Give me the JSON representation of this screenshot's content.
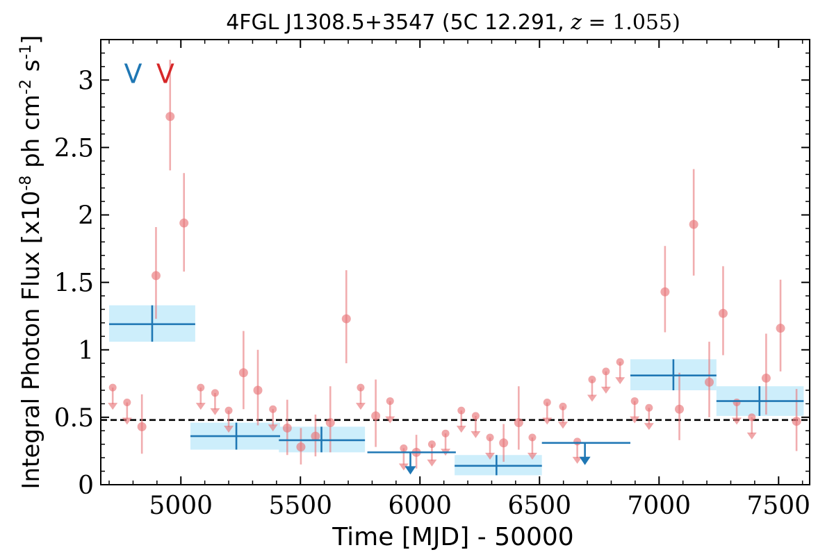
{
  "chart_data": {
    "type": "scatter",
    "title": "4FGL J1308.5+3547 (5C 12.291, z = 1.055)",
    "xlabel": "Time [MJD] - 50000",
    "ylabel": "Integral Photon Flux [x10^-8 ph cm^-2 s^-1]",
    "xlim": [
      4665,
      7630
    ],
    "ylim": [
      0,
      3.3
    ],
    "x_ticks": [
      5000,
      5500,
      6000,
      6500,
      7000,
      7500
    ],
    "x_tick_labels": [
      "5000",
      "5500",
      "6000",
      "6500",
      "7000",
      "7500"
    ],
    "y_ticks": [
      0,
      0.5,
      1,
      1.5,
      2,
      2.5,
      3
    ],
    "y_tick_labels": [
      "0",
      "0.5",
      "1",
      "1.5",
      "2",
      "2.5",
      "3"
    ],
    "grid": false,
    "colors": {
      "short_bins": "#e8767a",
      "long_bins": "#1f77b4",
      "band": "#cdeefb",
      "mean_line": "#000000",
      "marker_v_blue": "#1f77b4",
      "marker_v_red": "#d62728"
    },
    "annotations": [
      {
        "text": "V",
        "x": 4800,
        "y": 3.05,
        "color": "#1f77b4"
      },
      {
        "text": "V",
        "x": 4935,
        "y": 3.05,
        "color": "#d62728"
      }
    ],
    "mean_flux": 0.48,
    "series": [
      {
        "style": "short-bin detections",
        "points": [
          {
            "x": 4837,
            "y": 0.43,
            "yerr_low": 0.2,
            "yerr_high": 0.24
          },
          {
            "x": 4896,
            "y": 1.55,
            "yerr_low": 0.32,
            "yerr_high": 0.36
          },
          {
            "x": 4955,
            "y": 2.73,
            "yerr_low": 0.4,
            "yerr_high": 0.42
          },
          {
            "x": 5013,
            "y": 1.94,
            "yerr_low": 0.36,
            "yerr_high": 0.37
          },
          {
            "x": 5262,
            "y": 0.83,
            "yerr_low": 0.27,
            "yerr_high": 0.31
          },
          {
            "x": 5322,
            "y": 0.7,
            "yerr_low": 0.26,
            "yerr_high": 0.3
          },
          {
            "x": 5445,
            "y": 0.42,
            "yerr_low": 0.2,
            "yerr_high": 0.21
          },
          {
            "x": 5502,
            "y": 0.28,
            "yerr_low": 0.13,
            "yerr_high": 0.14
          },
          {
            "x": 5563,
            "y": 0.36,
            "yerr_low": 0.15,
            "yerr_high": 0.16
          },
          {
            "x": 5625,
            "y": 0.46,
            "yerr_low": 0.22,
            "yerr_high": 0.27
          },
          {
            "x": 5692,
            "y": 1.23,
            "yerr_low": 0.33,
            "yerr_high": 0.36
          },
          {
            "x": 5815,
            "y": 0.51,
            "yerr_low": 0.23,
            "yerr_high": 0.27
          },
          {
            "x": 5985,
            "y": 0.24,
            "yerr_low": 0.12,
            "yerr_high": 0.13
          },
          {
            "x": 6350,
            "y": 0.31,
            "yerr_low": 0.14,
            "yerr_high": 0.14
          },
          {
            "x": 6413,
            "y": 0.46,
            "yerr_low": 0.2,
            "yerr_high": 0.27
          },
          {
            "x": 7025,
            "y": 1.43,
            "yerr_low": 0.3,
            "yerr_high": 0.34
          },
          {
            "x": 7085,
            "y": 0.56,
            "yerr_low": 0.23,
            "yerr_high": 0.27
          },
          {
            "x": 7145,
            "y": 1.93,
            "yerr_low": 0.38,
            "yerr_high": 0.41
          },
          {
            "x": 7210,
            "y": 0.76,
            "yerr_low": 0.26,
            "yerr_high": 0.3
          },
          {
            "x": 7268,
            "y": 1.27,
            "yerr_low": 0.31,
            "yerr_high": 0.35
          },
          {
            "x": 7448,
            "y": 0.79,
            "yerr_low": 0.27,
            "yerr_high": 0.33
          },
          {
            "x": 7508,
            "y": 1.16,
            "yerr_low": 0.32,
            "yerr_high": 0.36
          },
          {
            "x": 7575,
            "y": 0.47,
            "yerr_low": 0.22,
            "yerr_high": 0.24
          }
        ]
      },
      {
        "style": "short-bin upper limits",
        "upper_limits": [
          {
            "x": 4715,
            "y": 0.72
          },
          {
            "x": 4775,
            "y": 0.61
          },
          {
            "x": 5083,
            "y": 0.72
          },
          {
            "x": 5143,
            "y": 0.68
          },
          {
            "x": 5200,
            "y": 0.55
          },
          {
            "x": 5385,
            "y": 0.56
          },
          {
            "x": 5752,
            "y": 0.72
          },
          {
            "x": 5875,
            "y": 0.62
          },
          {
            "x": 5932,
            "y": 0.27
          },
          {
            "x": 6050,
            "y": 0.3
          },
          {
            "x": 6107,
            "y": 0.38
          },
          {
            "x": 6173,
            "y": 0.55
          },
          {
            "x": 6233,
            "y": 0.51
          },
          {
            "x": 6293,
            "y": 0.35
          },
          {
            "x": 6470,
            "y": 0.35
          },
          {
            "x": 6532,
            "y": 0.61
          },
          {
            "x": 6598,
            "y": 0.58
          },
          {
            "x": 6658,
            "y": 0.32
          },
          {
            "x": 6720,
            "y": 0.78
          },
          {
            "x": 6778,
            "y": 0.84
          },
          {
            "x": 6837,
            "y": 0.91
          },
          {
            "x": 6898,
            "y": 0.62
          },
          {
            "x": 6958,
            "y": 0.57
          },
          {
            "x": 7325,
            "y": 0.61
          },
          {
            "x": 7388,
            "y": 0.5
          }
        ]
      },
      {
        "style": "long-bin detections",
        "bins": [
          {
            "x_start": 4700,
            "x_end": 5060,
            "x_center": 4880,
            "y": 1.19,
            "y_low": 1.06,
            "y_high": 1.33
          },
          {
            "x_start": 5040,
            "x_end": 5415,
            "x_center": 5232,
            "y": 0.36,
            "y_low": 0.26,
            "y_high": 0.46
          },
          {
            "x_start": 5410,
            "x_end": 5770,
            "x_center": 5588,
            "y": 0.33,
            "y_low": 0.24,
            "y_high": 0.43
          },
          {
            "x_start": 6145,
            "x_end": 6510,
            "x_center": 6320,
            "y": 0.14,
            "y_low": 0.07,
            "y_high": 0.22
          },
          {
            "x_start": 6880,
            "x_end": 7240,
            "x_center": 7060,
            "y": 0.81,
            "y_low": 0.7,
            "y_high": 0.93
          },
          {
            "x_start": 7240,
            "x_end": 7605,
            "x_center": 7420,
            "y": 0.62,
            "y_low": 0.51,
            "y_high": 0.73
          }
        ]
      },
      {
        "style": "long-bin upper limits",
        "upper_limits": [
          {
            "x_start": 5780,
            "x_end": 6150,
            "x_center": 5960,
            "y": 0.24
          },
          {
            "x_start": 6510,
            "x_end": 6880,
            "x_center": 6690,
            "y": 0.31
          }
        ]
      }
    ]
  }
}
